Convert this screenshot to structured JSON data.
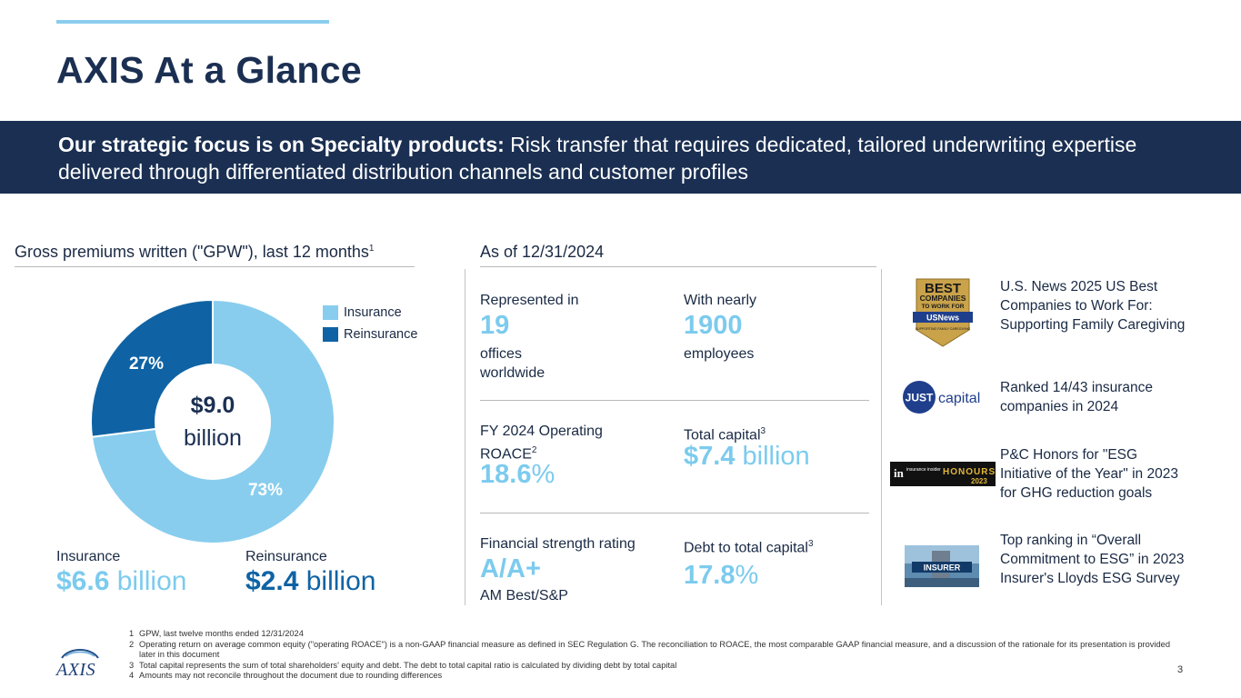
{
  "title": "AXIS At a Glance",
  "banner": {
    "bold": "Our strategic focus is on Specialty products:",
    "text": " Risk transfer that requires dedicated, tailored underwriting expertise delivered through differentiated distribution channels and customer profiles"
  },
  "gpw": {
    "heading": "Gross premiums written (\"GPW\"), last 12 months",
    "heading_sup": "1",
    "center_amount": "$9.0",
    "center_unit": "billion",
    "legend": [
      {
        "label": "Insurance",
        "color": "#88cdee"
      },
      {
        "label": "Reinsurance",
        "color": "#0f63a4"
      }
    ],
    "insurance_label": "Insurance",
    "insurance_amount": "$6.6",
    "insurance_unit": " billion",
    "reinsurance_label": "Reinsurance",
    "reinsurance_amount": "$2.4",
    "reinsurance_unit": " billion"
  },
  "chart_data": {
    "type": "pie",
    "title": "Gross premiums written (\"GPW\"), last 12 months",
    "categories": [
      "Insurance",
      "Reinsurance"
    ],
    "values": [
      73,
      27
    ],
    "labels": [
      "73%",
      "27%"
    ],
    "colors": [
      "#88cdee",
      "#0f63a4"
    ]
  },
  "asof": {
    "heading": "As of 12/31/2024",
    "offices": {
      "label": "Represented in",
      "value": "19",
      "sub": "offices worldwide"
    },
    "employees": {
      "label": "With nearly",
      "value": "1900",
      "sub": "employees"
    },
    "roace": {
      "label": "FY 2024 Operating ROACE",
      "label_sup": "2",
      "value": "18.6",
      "unit": "%"
    },
    "capital": {
      "label": "Total capital",
      "label_sup": "3",
      "value": "$7.4",
      "unit": " billion"
    },
    "rating": {
      "label": "Financial strength rating",
      "value": "A/A+",
      "sub": "AM Best/S&P"
    },
    "debt": {
      "label": "Debt to total capital",
      "label_sup": "3",
      "value": "17.8",
      "unit": "%"
    }
  },
  "awards": [
    {
      "logo": "usnews-best-companies-badge",
      "badge_lines": [
        "BEST",
        "COMPANIES",
        "TO WORK FOR",
        "USNews",
        "SUPPORTING FAMILY CAREGIVING"
      ],
      "text": "U.S. News 2025 US Best Companies to Work For: Supporting Family Caregiving"
    },
    {
      "logo": "just-capital-logo",
      "logo_just": "JUST",
      "logo_capital": "capital",
      "text": "Ranked 14/43 insurance companies in 2024"
    },
    {
      "logo": "insurance-insider-honours-logo",
      "logo_word": "HONOURS",
      "logo_year": "2023",
      "logo_small": "insurance insider",
      "text": "P&C Honors for \"ESG Initiative of the Year\" in 2023 for GHG reduction goals"
    },
    {
      "logo": "insurer-lloyds-survey-image",
      "logo_word": "INSURER",
      "text": "Top ranking in “Overall Commitment to ESG” in 2023 Insurer's Lloyds ESG Survey"
    }
  ],
  "footnotes": [
    {
      "num": "1",
      "text": "GPW, last twelve months ended 12/31/2024"
    },
    {
      "num": "2",
      "text": "Operating return on average common equity (\"operating ROACE\") is a non-GAAP financial measure as defined in SEC Regulation G. The reconciliation to ROACE, the most comparable GAAP financial measure, and a discussion of the rationale for its presentation is provided later in this document"
    },
    {
      "num": "3",
      "text": "Total capital represents the sum of total shareholders' equity and debt. The debt to total capital ratio is calculated by dividing debt by total capital"
    },
    {
      "num": "4",
      "text": "Amounts may not reconcile throughout the document due to rounding differences"
    }
  ],
  "logo_text": "AXIS",
  "page_number": "3"
}
